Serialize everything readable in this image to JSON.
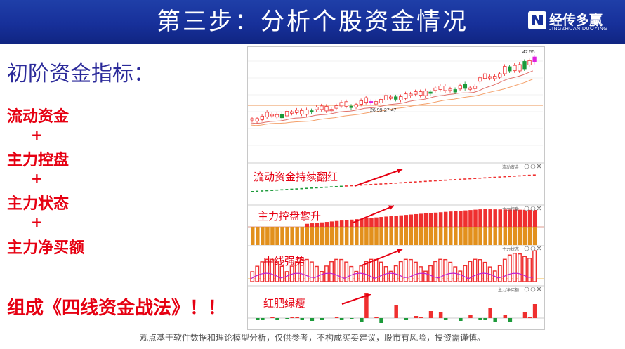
{
  "header": {
    "title": "第三步：分析个股资金情况",
    "background": "#17309a",
    "logo_cn": "经传多赢",
    "logo_en": "JINGZHUAN DUOYING"
  },
  "left": {
    "heading": "初阶资金指标：",
    "indicators": [
      "流动资金",
      "主力控盘",
      "主力状态",
      "主力净买额"
    ],
    "plus": "+",
    "conclusion": "组成《四线资金战法》！！",
    "accent": "#e60012",
    "heading_color": "#2b2a9a"
  },
  "chart": {
    "price_high_label": "42.55",
    "price_range_label": "26.99-27.47",
    "panels": [
      {
        "title": "流动资金",
        "annotation": "流动资金持续翻红"
      },
      {
        "title": "主力控盘",
        "annotation": "主力控盘攀升"
      },
      {
        "title": "主力状态",
        "annotation": "中线强势"
      },
      {
        "title": "主力净买额",
        "annotation": "红肥绿瘦"
      }
    ],
    "panel_icons": [
      "help-icon",
      "settings-icon",
      "close-icon"
    ],
    "colors": {
      "up": "#ef2f2f",
      "down": "#1c9a3a",
      "highlight": "#e020e0",
      "control_base": "#e2901c"
    }
  },
  "footer": {
    "disclaimer": "观点基于软件数据和理论模型分析，仅供参考，不构成买卖建议，股市有风险，投资需谨慎。"
  }
}
